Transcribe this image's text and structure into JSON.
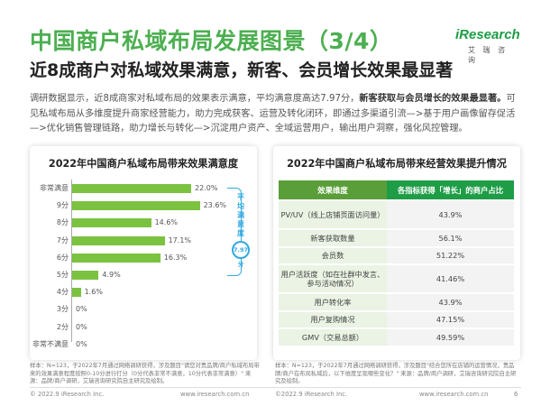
{
  "header": {
    "title": "中国商户私域布局发展图景（3/4）",
    "subtitle": "近8成商户对私域效果满意，新客、会员增长效果最显著"
  },
  "logo": {
    "brand": "iResearch",
    "sub": "艾 瑞 咨 询"
  },
  "summary": {
    "part1": "调研数据显示，近8成商家对私域布局的效果表示满意，平均满意度高达7.97分，",
    "bold": "新客获取与会员增长的效果最显著。",
    "part2": "可见私域布局从多维度提升商家经营能力，助力完成获客、运营及转化闭环，即通过多渠道引流—>基于用户画像留存促活—>优化销售管理链路，助力增长与转化—>沉淀用户资产、全域运营用户，输出用户洞察，强化风控管理。"
  },
  "chart_data": [
    {
      "type": "bar",
      "title": "2022年中国商户私域布局带来效果满意度",
      "categories": [
        "非常满意",
        "9分",
        "8分",
        "7分",
        "6分",
        "5分",
        "4分",
        "3分",
        "2分",
        "非常不满意"
      ],
      "values": [
        22.0,
        23.6,
        14.6,
        17.1,
        16.3,
        4.9,
        1.6,
        0,
        0,
        0
      ],
      "value_labels": [
        "22.0%",
        "23.6%",
        "14.6%",
        "17.1%",
        "16.3%",
        "4.9%",
        "1.6%",
        "0%",
        "0%",
        "0%"
      ],
      "orientation": "horizontal",
      "average_label": "平均满意度",
      "average_value": "7.97分",
      "bar_color": "#7cc241"
    },
    {
      "type": "table",
      "title": "2022年中国商户私域布局带来经营效果提升情况",
      "columns": [
        "效果维度",
        "各指标获得「增长」的商户占比"
      ],
      "rows": [
        [
          "PV/UV（线上店铺页面访问量）",
          "43.9%"
        ],
        [
          "新客获取数量",
          "56.1%"
        ],
        [
          "会员数",
          "51.22%"
        ],
        [
          "用户活跃度（如在社群中发言、参与活动情况）",
          "41.46%"
        ],
        [
          "用户转化率",
          "43.9%"
        ],
        [
          "用户复购情况",
          "47.15%"
        ],
        [
          "GMV（交易总额）",
          "49.59%"
        ]
      ]
    }
  ],
  "notes": {
    "left": "样本：N=123，于2022年7月通过网络调研获得，涉及题目\"请您对贵品牌/商户私域布局带来的效果满意程度按照0-10分进行打分（0分代表非常不满意，10分代表非常满意）\" 来源：品牌/商户调研，艾瑞咨询研究院自主研究及绘制。",
    "right": "样本：N=123，于2022年7月通过网络调研获得，涉及题目\"结合您所在店铺的运营情况，贵品牌/商户在布局私域后，以下维度呈现哪些变化？\" 来源：品牌/商户调研，艾瑞咨询研究院自主研究及绘制。"
  },
  "footer": {
    "left_copy": "© 2022.9 iResearch Inc.",
    "left_url": "www.iresearch.com.cn",
    "right_copy": "©2022.9 iResearch Inc.",
    "right_url": "www.iresearch.com.cn",
    "page": "6"
  }
}
